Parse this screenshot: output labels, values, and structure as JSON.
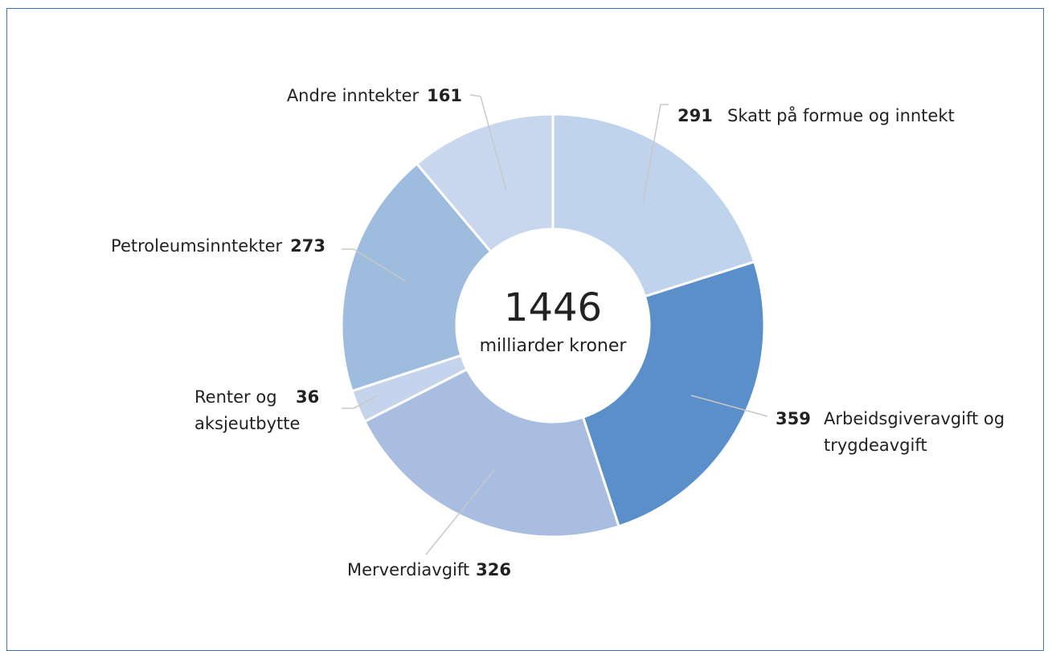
{
  "chart_data": {
    "type": "donut",
    "categories": [
      "Skatt på formue og inntekt",
      "Arbeidsgiveravgift og trygdeavgift",
      "Merverdiavgift",
      "Renter og aksjeutbytte",
      "Petroleumsinntekter",
      "Andre inntekter"
    ],
    "values": [
      291,
      359,
      326,
      36,
      273,
      161
    ],
    "colors": [
      "#bfd3ec",
      "#5b8fc9",
      "#a9bde0",
      "#c5d4ec",
      "#9dbcde",
      "#c8d6ee"
    ],
    "center_value": 1446,
    "center_label": "milliarder kroner"
  }
}
